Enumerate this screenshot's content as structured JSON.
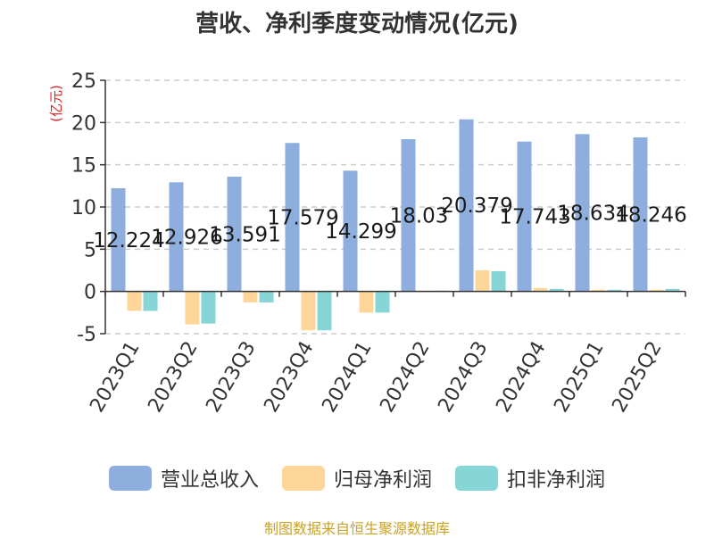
{
  "title": "营收、净利季度变动情况(亿元)",
  "source": "制图数据来自恒生聚源数据库",
  "chart_data": {
    "type": "bar",
    "title": "营收、净利季度变动情况(亿元)",
    "ylabel": "(亿元)",
    "xlabel": "",
    "ylim": [
      -5,
      25
    ],
    "yticks": [
      -5,
      0,
      5,
      10,
      15,
      20,
      25
    ],
    "grid": true,
    "legend_position": "bottom",
    "categories": [
      "2023Q1",
      "2023Q2",
      "2023Q3",
      "2023Q4",
      "2024Q1",
      "2024Q2",
      "2024Q3",
      "2024Q4",
      "2025Q1",
      "2025Q2"
    ],
    "series": [
      {
        "name": "营业总收入",
        "color": "#8eaedd",
        "values": [
          12.224,
          12.926,
          13.591,
          17.579,
          14.299,
          18.03,
          20.379,
          17.743,
          18.634,
          18.246
        ],
        "labels": [
          "12.224",
          "12.926",
          "13.591",
          "17.579",
          "14.299",
          "18.03",
          "20.379",
          "17.743",
          "18.634",
          "18.246"
        ]
      },
      {
        "name": "归母净利润",
        "color": "#ffd699",
        "values": [
          -2.3,
          -3.9,
          -1.3,
          -4.6,
          -2.5,
          0.1,
          2.5,
          0.4,
          0.2,
          0.2
        ]
      },
      {
        "name": "扣非净利润",
        "color": "#86d6d8",
        "values": [
          -2.3,
          -3.8,
          -1.3,
          -4.6,
          -2.5,
          0.1,
          2.4,
          0.3,
          0.2,
          0.3
        ]
      }
    ]
  }
}
